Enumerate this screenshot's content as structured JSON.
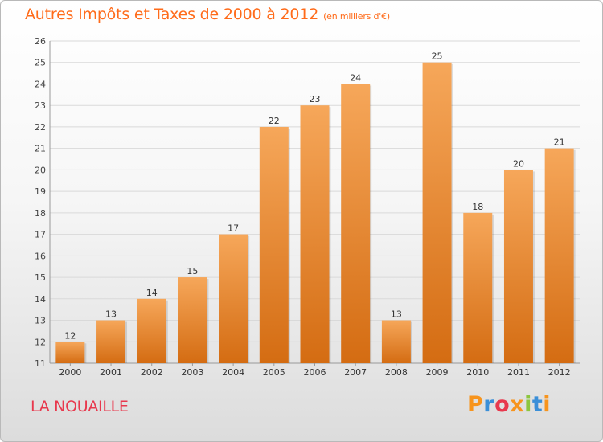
{
  "page": {
    "title": "Autres Impôts et Taxes de 2000 à 2012",
    "subtitle": "(en milliers d'€)",
    "location": "LA NOUAILLE",
    "logo_text": "Proxiti",
    "logo_colors": [
      "#f7941d",
      "#3a8fd8",
      "#e8384d",
      "#f7941d",
      "#8cc63f",
      "#3a8fd8",
      "#f7941d"
    ]
  },
  "chart_data": {
    "type": "bar",
    "title": "Autres Impôts et Taxes de 2000 à 2012",
    "subtitle": "(en milliers d'€)",
    "xlabel": "",
    "ylabel": "",
    "categories": [
      "2000",
      "2001",
      "2002",
      "2003",
      "2004",
      "2005",
      "2006",
      "2007",
      "2008",
      "2009",
      "2010",
      "2011",
      "2012"
    ],
    "values": [
      12,
      13,
      14,
      15,
      17,
      22,
      23,
      24,
      13,
      25,
      18,
      20,
      21
    ],
    "ylim": [
      11,
      26
    ],
    "yticks": [
      11,
      12,
      13,
      14,
      15,
      16,
      17,
      18,
      19,
      20,
      21,
      22,
      23,
      24,
      25,
      26
    ],
    "grid": "horizontal",
    "legend": "none",
    "colors": {
      "bar_top": "#f6a75a",
      "bar_bottom": "#d46c12",
      "grid": "#d9d9d9"
    }
  }
}
